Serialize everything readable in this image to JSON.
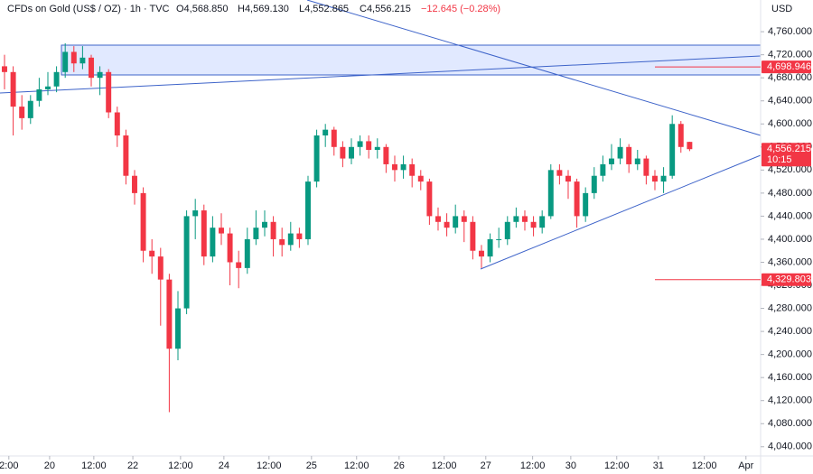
{
  "chart_data": {
    "type": "candlestick",
    "header": {
      "symbol": "CFDs on Gold (US$ / OZ) · 1h · TVC",
      "open": "O4,568.850",
      "high": "H4,569.130",
      "low": "L4,552.865",
      "close": "C4,556.215",
      "change": "−12.645 (−0.28%)"
    },
    "currency": "USD",
    "up_color": "#089981",
    "down_color": "#f23645",
    "grid": false,
    "xlim": [
      -0.52,
      87.19
    ],
    "xticks": [
      {
        "value": 0.5,
        "label": "2:00"
      },
      {
        "value": 5.2,
        "label": "20"
      },
      {
        "value": 10.3,
        "label": "12:00"
      },
      {
        "value": 14.8,
        "label": "22"
      },
      {
        "value": 20.3,
        "label": "12:00"
      },
      {
        "value": 25.3,
        "label": "24"
      },
      {
        "value": 30.5,
        "label": "12:00"
      },
      {
        "value": 35.4,
        "label": "25"
      },
      {
        "value": 40.6,
        "label": "12:00"
      },
      {
        "value": 45.5,
        "label": "26"
      },
      {
        "value": 50.7,
        "label": "12:00"
      },
      {
        "value": 55.5,
        "label": "27"
      },
      {
        "value": 60.9,
        "label": "12:00"
      },
      {
        "value": 65.3,
        "label": "30"
      },
      {
        "value": 70.6,
        "label": "12:00"
      },
      {
        "value": 75.4,
        "label": "31"
      },
      {
        "value": 80.7,
        "label": "12:00"
      },
      {
        "value": 85.5,
        "label": "Apr"
      }
    ],
    "ylim": [
      4024,
      4815
    ],
    "yticks": [
      {
        "value": 4760,
        "label": "4,760.000"
      },
      {
        "value": 4720,
        "label": "4,720.000"
      },
      {
        "value": 4680,
        "label": "4,680.000"
      },
      {
        "value": 4640,
        "label": "4,640.000"
      },
      {
        "value": 4600,
        "label": "4,600.000"
      },
      {
        "value": 4560,
        "label": "4,560.000"
      },
      {
        "value": 4520,
        "label": "4,520.000"
      },
      {
        "value": 4480,
        "label": "4,480.000"
      },
      {
        "value": 4440,
        "label": "4,440.000"
      },
      {
        "value": 4400,
        "label": "4,400.000"
      },
      {
        "value": 4360,
        "label": "4,360.000"
      },
      {
        "value": 4320,
        "label": "4,320.000"
      },
      {
        "value": 4280,
        "label": "4,280.000"
      },
      {
        "value": 4240,
        "label": "4,240.000"
      },
      {
        "value": 4200,
        "label": "4,200.000"
      },
      {
        "value": 4160,
        "label": "4,160.000"
      },
      {
        "value": 4120,
        "label": "4,120.000"
      },
      {
        "value": 4080,
        "label": "4,080.000"
      },
      {
        "value": 4040,
        "label": "4,040.000"
      }
    ],
    "x": [
      0,
      1,
      2,
      3,
      4,
      5,
      6,
      7,
      8,
      9,
      10,
      11,
      12,
      13,
      14,
      15,
      16,
      17,
      18,
      19,
      20,
      21,
      22,
      23,
      24,
      25,
      26,
      27,
      28,
      29,
      30,
      31,
      32,
      33,
      34,
      35,
      36,
      37,
      38,
      39,
      40,
      41,
      42,
      43,
      44,
      45,
      46,
      47,
      48,
      49,
      50,
      51,
      52,
      53,
      54,
      55,
      56,
      57,
      58,
      59,
      60,
      61,
      62,
      63,
      64,
      65,
      66,
      67,
      68,
      69,
      70,
      71,
      72,
      73,
      74,
      75,
      76,
      77,
      78,
      79
    ],
    "open": [
      4700,
      4690,
      4630,
      4610,
      4640,
      4660,
      4665,
      4690,
      4725,
      4705,
      4715,
      4680,
      4690,
      4620,
      4580,
      4510,
      4480,
      4380,
      4370,
      4330,
      4210,
      4280,
      4440,
      4450,
      4370,
      4420,
      4410,
      4360,
      4350,
      4400,
      4420,
      4430,
      4400,
      4390,
      4410,
      4400,
      4500,
      4580,
      4590,
      4560,
      4540,
      4560,
      4570,
      4555,
      4560,
      4530,
      4520,
      4530,
      4510,
      4500,
      4440,
      4430,
      4420,
      4440,
      4430,
      4380,
      4370,
      4400,
      4400,
      4430,
      4440,
      4430,
      4420,
      4440,
      4520,
      4510,
      4500,
      4440,
      4480,
      4510,
      4530,
      4540,
      4560,
      4530,
      4540,
      4510,
      4500,
      4510,
      4600,
      4568.85
    ],
    "high": [
      4720,
      4700,
      4650,
      4650,
      4680,
      4690,
      4700,
      4740,
      4735,
      4735,
      4720,
      4700,
      4695,
      4630,
      4590,
      4520,
      4490,
      4400,
      4385,
      4340,
      4310,
      4450,
      4470,
      4460,
      4440,
      4445,
      4420,
      4380,
      4420,
      4450,
      4450,
      4440,
      4420,
      4430,
      4420,
      4510,
      4590,
      4600,
      4595,
      4570,
      4575,
      4580,
      4580,
      4575,
      4565,
      4545,
      4545,
      4540,
      4520,
      4505,
      4455,
      4445,
      4460,
      4450,
      4440,
      4390,
      4410,
      4420,
      4440,
      4455,
      4450,
      4440,
      4450,
      4530,
      4530,
      4520,
      4505,
      4490,
      4525,
      4545,
      4565,
      4575,
      4565,
      4555,
      4545,
      4520,
      4525,
      4615,
      4605,
      4569.13
    ],
    "low": [
      4660,
      4580,
      4590,
      4600,
      4630,
      4650,
      4655,
      4680,
      4690,
      4695,
      4665,
      4650,
      4610,
      4560,
      4495,
      4460,
      4360,
      4340,
      4250,
      4100,
      4190,
      4270,
      4400,
      4355,
      4360,
      4390,
      4320,
      4315,
      4340,
      4390,
      4405,
      4370,
      4370,
      4380,
      4385,
      4390,
      4490,
      4560,
      4545,
      4525,
      4530,
      4545,
      4540,
      4540,
      4515,
      4500,
      4505,
      4490,
      4485,
      4425,
      4415,
      4405,
      4410,
      4395,
      4365,
      4350,
      4360,
      4385,
      4390,
      4420,
      4415,
      4405,
      4410,
      4435,
      4495,
      4470,
      4420,
      4430,
      4470,
      4500,
      4520,
      4530,
      4515,
      4520,
      4495,
      4485,
      4480,
      4505,
      4550,
      4552.865
    ],
    "close": [
      4690,
      4630,
      4610,
      4640,
      4660,
      4665,
      4690,
      4725,
      4705,
      4715,
      4680,
      4690,
      4620,
      4580,
      4510,
      4480,
      4380,
      4370,
      4330,
      4210,
      4280,
      4440,
      4450,
      4370,
      4420,
      4410,
      4360,
      4350,
      4400,
      4420,
      4430,
      4400,
      4390,
      4410,
      4400,
      4500,
      4580,
      4590,
      4560,
      4540,
      4560,
      4570,
      4555,
      4560,
      4530,
      4520,
      4530,
      4510,
      4500,
      4440,
      4430,
      4420,
      4440,
      4430,
      4380,
      4370,
      4400,
      4400,
      4430,
      4440,
      4430,
      4420,
      4440,
      4520,
      4510,
      4500,
      4440,
      4480,
      4510,
      4530,
      4540,
      4560,
      4530,
      4540,
      4510,
      4500,
      4510,
      4600,
      4560,
      4556.215
    ],
    "price_labels": [
      {
        "value": 4698.946,
        "label": "4,698.946"
      },
      {
        "value": 4556.215,
        "label": "4,556.215",
        "countdown": "10:15"
      },
      {
        "value": 4329.803,
        "label": "4,329.803"
      }
    ]
  }
}
